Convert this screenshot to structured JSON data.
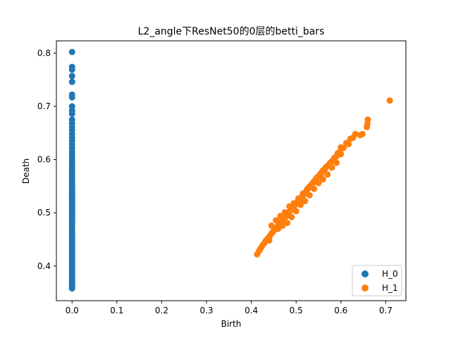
{
  "chart_data": {
    "type": "scatter",
    "title": "L2_angle下ResNet50的0层的betti_bars",
    "xlabel": "Birth",
    "ylabel": "Death",
    "xlim": [
      -0.035,
      0.745
    ],
    "ylim": [
      0.335,
      0.823
    ],
    "x_ticks": [
      0.0,
      0.1,
      0.2,
      0.3,
      0.4,
      0.5,
      0.6,
      0.7
    ],
    "x_tick_labels": [
      "0.0",
      "0.1",
      "0.2",
      "0.3",
      "0.4",
      "0.5",
      "0.6",
      "0.7"
    ],
    "y_ticks": [
      0.4,
      0.5,
      0.6,
      0.7,
      0.8
    ],
    "y_tick_labels": [
      "0.4",
      "0.5",
      "0.6",
      "0.7",
      "0.8"
    ],
    "grid": false,
    "legend_position": "lower-right",
    "series": [
      {
        "name": "H_0",
        "color": "#1f77b4",
        "x": [
          0,
          0,
          0,
          0,
          0,
          0,
          0,
          0,
          0,
          0,
          0,
          0,
          0,
          0,
          0,
          0,
          0,
          0,
          0,
          0,
          0,
          0,
          0,
          0,
          0,
          0,
          0,
          0,
          0,
          0,
          0,
          0,
          0,
          0,
          0,
          0,
          0,
          0,
          0,
          0,
          0,
          0,
          0,
          0,
          0,
          0,
          0,
          0,
          0,
          0,
          0,
          0,
          0,
          0,
          0,
          0,
          0,
          0,
          0,
          0,
          0,
          0,
          0,
          0,
          0,
          0,
          0,
          0,
          0,
          0,
          0,
          0,
          0,
          0,
          0,
          0,
          0,
          0,
          0,
          0,
          0,
          0,
          0,
          0,
          0,
          0,
          0,
          0,
          0,
          0
        ],
        "y": [
          0.802,
          0.774,
          0.769,
          0.757,
          0.746,
          0.722,
          0.717,
          0.7,
          0.692,
          0.686,
          0.675,
          0.668,
          0.661,
          0.655,
          0.648,
          0.641,
          0.635,
          0.628,
          0.622,
          0.615,
          0.609,
          0.603,
          0.598,
          0.592,
          0.587,
          0.582,
          0.577,
          0.572,
          0.567,
          0.562,
          0.558,
          0.554,
          0.55,
          0.546,
          0.542,
          0.538,
          0.534,
          0.53,
          0.526,
          0.522,
          0.518,
          0.514,
          0.51,
          0.506,
          0.502,
          0.498,
          0.494,
          0.49,
          0.486,
          0.482,
          0.478,
          0.474,
          0.47,
          0.466,
          0.462,
          0.458,
          0.454,
          0.45,
          0.446,
          0.442,
          0.438,
          0.434,
          0.43,
          0.426,
          0.422,
          0.418,
          0.414,
          0.41,
          0.406,
          0.402,
          0.398,
          0.394,
          0.39,
          0.386,
          0.382,
          0.378,
          0.375,
          0.372,
          0.369,
          0.366,
          0.363,
          0.36,
          0.358,
          0.545,
          0.535,
          0.525,
          0.515,
          0.505,
          0.495,
          0.485
        ]
      },
      {
        "name": "H_1",
        "color": "#ff7f0e",
        "x": [
          0.709,
          0.66,
          0.659,
          0.658,
          0.648,
          0.643,
          0.632,
          0.627,
          0.621,
          0.617,
          0.612,
          0.606,
          0.6,
          0.598,
          0.593,
          0.59,
          0.586,
          0.581,
          0.576,
          0.571,
          0.567,
          0.563,
          0.559,
          0.556,
          0.553,
          0.549,
          0.546,
          0.543,
          0.54,
          0.537,
          0.534,
          0.531,
          0.528,
          0.525,
          0.522,
          0.519,
          0.516,
          0.513,
          0.51,
          0.507,
          0.504,
          0.501,
          0.498,
          0.495,
          0.492,
          0.489,
          0.486,
          0.483,
          0.48,
          0.477,
          0.474,
          0.471,
          0.468,
          0.465,
          0.462,
          0.459,
          0.456,
          0.453,
          0.45,
          0.447,
          0.444,
          0.441,
          0.438,
          0.435,
          0.432,
          0.429,
          0.426,
          0.423,
          0.42,
          0.417,
          0.413,
          0.575,
          0.565,
          0.555,
          0.545,
          0.535,
          0.525,
          0.515,
          0.505,
          0.495,
          0.485,
          0.475,
          0.465,
          0.455,
          0.445,
          0.59,
          0.57,
          0.55,
          0.53,
          0.51,
          0.49,
          0.47,
          0.46,
          0.44,
          0.6,
          0.58,
          0.56,
          0.54,
          0.52,
          0.5,
          0.48
        ],
        "y": [
          0.711,
          0.675,
          0.667,
          0.661,
          0.648,
          0.646,
          0.648,
          0.641,
          0.639,
          0.629,
          0.631,
          0.622,
          0.623,
          0.615,
          0.612,
          0.606,
          0.604,
          0.598,
          0.594,
          0.589,
          0.586,
          0.582,
          0.579,
          0.575,
          0.572,
          0.568,
          0.566,
          0.562,
          0.559,
          0.556,
          0.553,
          0.55,
          0.547,
          0.543,
          0.54,
          0.537,
          0.533,
          0.53,
          0.527,
          0.524,
          0.521,
          0.518,
          0.515,
          0.512,
          0.509,
          0.506,
          0.503,
          0.5,
          0.497,
          0.493,
          0.49,
          0.487,
          0.484,
          0.481,
          0.478,
          0.475,
          0.472,
          0.469,
          0.466,
          0.463,
          0.46,
          0.456,
          0.453,
          0.45,
          0.447,
          0.443,
          0.44,
          0.436,
          0.432,
          0.428,
          0.422,
          0.59,
          0.583,
          0.57,
          0.563,
          0.552,
          0.545,
          0.536,
          0.527,
          0.518,
          0.512,
          0.501,
          0.494,
          0.486,
          0.476,
          0.594,
          0.572,
          0.556,
          0.533,
          0.515,
          0.492,
          0.476,
          0.47,
          0.448,
          0.61,
          0.585,
          0.563,
          0.545,
          0.522,
          0.503,
          0.481
        ]
      }
    ]
  }
}
